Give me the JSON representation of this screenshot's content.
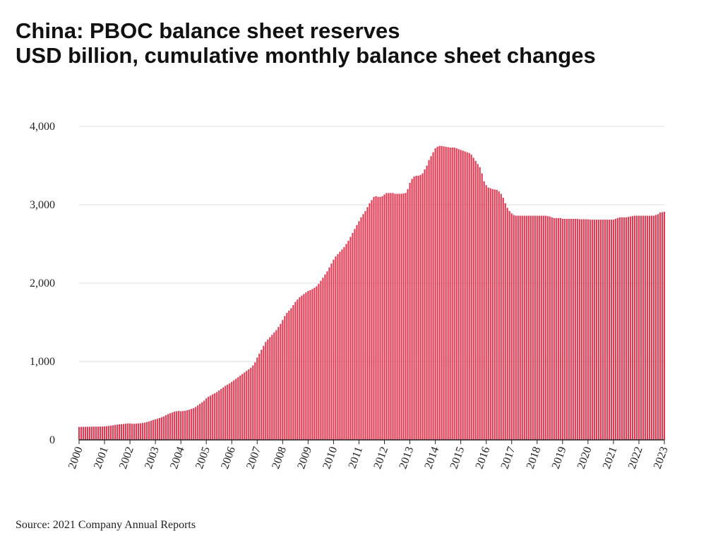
{
  "chart_data": {
    "type": "bar",
    "title": "China: PBOC balance sheet reserves",
    "subtitle": "USD billion, cumulative monthly balance sheet changes",
    "source": "Source: 2021 Company Annual Reports",
    "color": "#e03a52",
    "grid": true,
    "ylim": [
      0,
      4000
    ],
    "yticks": [
      0,
      {
        "value": 1000,
        "label": "1,000"
      },
      {
        "value": 2000,
        "label": "2,000"
      },
      {
        "value": 3000,
        "label": "3,000"
      },
      {
        "value": 4000,
        "label": "4,000"
      }
    ],
    "categories": [
      "2000",
      null,
      null,
      null,
      null,
      null,
      null,
      null,
      null,
      null,
      null,
      null,
      "2001",
      null,
      null,
      null,
      null,
      null,
      null,
      null,
      null,
      null,
      null,
      null,
      "2002",
      null,
      null,
      null,
      null,
      null,
      null,
      null,
      null,
      null,
      null,
      null,
      "2003",
      null,
      null,
      null,
      null,
      null,
      null,
      null,
      null,
      null,
      null,
      null,
      "2004",
      null,
      null,
      null,
      null,
      null,
      null,
      null,
      null,
      null,
      null,
      null,
      "2005",
      null,
      null,
      null,
      null,
      null,
      null,
      null,
      null,
      null,
      null,
      null,
      "2006",
      null,
      null,
      null,
      null,
      null,
      null,
      null,
      null,
      null,
      null,
      null,
      "2007",
      null,
      null,
      null,
      null,
      null,
      null,
      null,
      null,
      null,
      null,
      null,
      "2008",
      null,
      null,
      null,
      null,
      null,
      null,
      null,
      null,
      null,
      null,
      null,
      "2009",
      null,
      null,
      null,
      null,
      null,
      null,
      null,
      null,
      null,
      null,
      null,
      "2010",
      null,
      null,
      null,
      null,
      null,
      null,
      null,
      null,
      null,
      null,
      null,
      "2011",
      null,
      null,
      null,
      null,
      null,
      null,
      null,
      null,
      null,
      null,
      null,
      "2012",
      null,
      null,
      null,
      null,
      null,
      null,
      null,
      null,
      null,
      null,
      null,
      "2013",
      null,
      null,
      null,
      null,
      null,
      null,
      null,
      null,
      null,
      null,
      null,
      "2014",
      null,
      null,
      null,
      null,
      null,
      null,
      null,
      null,
      null,
      null,
      null,
      "2015",
      null,
      null,
      null,
      null,
      null,
      null,
      null,
      null,
      null,
      null,
      null,
      "2016",
      null,
      null,
      null,
      null,
      null,
      null,
      null,
      null,
      null,
      null,
      null,
      "2017",
      null,
      null,
      null,
      null,
      null,
      null,
      null,
      null,
      null,
      null,
      null,
      "2018",
      null,
      null,
      null,
      null,
      null,
      null,
      null,
      null,
      null,
      null,
      null,
      "2019",
      null,
      null,
      null,
      null,
      null,
      null,
      null,
      null,
      null,
      null,
      null,
      "2020",
      null,
      null,
      null,
      null,
      null,
      null,
      null,
      null,
      null,
      null,
      null,
      "2021",
      null,
      null,
      null,
      null,
      null,
      null,
      null,
      null,
      null,
      null,
      null,
      "2022",
      null,
      null,
      null,
      null,
      null,
      null,
      null,
      null,
      null,
      null,
      null,
      "2023"
    ],
    "values": [
      165,
      166,
      166,
      167,
      167,
      168,
      168,
      168,
      169,
      169,
      170,
      170,
      172,
      175,
      178,
      182,
      185,
      190,
      195,
      198,
      200,
      203,
      206,
      210,
      210,
      205,
      205,
      208,
      210,
      212,
      215,
      220,
      228,
      235,
      245,
      255,
      262,
      270,
      280,
      290,
      300,
      315,
      330,
      340,
      350,
      360,
      365,
      370,
      365,
      368,
      372,
      378,
      385,
      395,
      405,
      420,
      440,
      460,
      480,
      500,
      530,
      550,
      565,
      580,
      595,
      610,
      630,
      650,
      670,
      690,
      705,
      720,
      740,
      760,
      780,
      800,
      820,
      840,
      860,
      880,
      900,
      920,
      950,
      990,
      1050,
      1100,
      1150,
      1200,
      1250,
      1280,
      1310,
      1340,
      1370,
      1400,
      1440,
      1480,
      1530,
      1580,
      1620,
      1650,
      1680,
      1720,
      1760,
      1790,
      1820,
      1840,
      1860,
      1880,
      1900,
      1910,
      1925,
      1940,
      1960,
      1990,
      2030,
      2070,
      2110,
      2150,
      2200,
      2250,
      2300,
      2340,
      2370,
      2400,
      2430,
      2460,
      2500,
      2540,
      2590,
      2640,
      2690,
      2740,
      2790,
      2840,
      2880,
      2920,
      2970,
      3020,
      3060,
      3100,
      3110,
      3100,
      3100,
      3110,
      3130,
      3150,
      3150,
      3150,
      3150,
      3140,
      3140,
      3140,
      3140,
      3145,
      3150,
      3200,
      3280,
      3330,
      3360,
      3370,
      3370,
      3380,
      3400,
      3450,
      3500,
      3570,
      3620,
      3670,
      3720,
      3740,
      3750,
      3750,
      3745,
      3740,
      3735,
      3730,
      3730,
      3730,
      3720,
      3710,
      3700,
      3690,
      3680,
      3670,
      3660,
      3640,
      3600,
      3560,
      3520,
      3480,
      3400,
      3300,
      3250,
      3220,
      3210,
      3200,
      3195,
      3190,
      3170,
      3140,
      3090,
      3020,
      2960,
      2920,
      2890,
      2870,
      2860,
      2860,
      2860,
      2860,
      2860,
      2860,
      2860,
      2860,
      2860,
      2860,
      2860,
      2860,
      2860,
      2860,
      2860,
      2855,
      2850,
      2840,
      2830,
      2830,
      2830,
      2830,
      2820,
      2820,
      2820,
      2820,
      2820,
      2820,
      2820,
      2820,
      2815,
      2815,
      2815,
      2815,
      2815,
      2810,
      2810,
      2810,
      2810,
      2810,
      2810,
      2810,
      2810,
      2810,
      2810,
      2810,
      2810,
      2820,
      2830,
      2840,
      2840,
      2840,
      2840,
      2845,
      2850,
      2855,
      2860,
      2860,
      2860,
      2860,
      2860,
      2860,
      2860,
      2860,
      2860,
      2860,
      2870,
      2880,
      2900,
      2905,
      2910
    ]
  }
}
